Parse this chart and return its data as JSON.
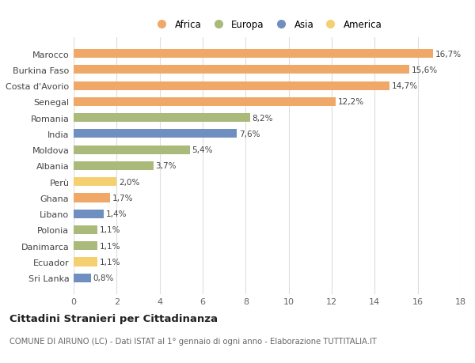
{
  "countries": [
    "Marocco",
    "Burkina Faso",
    "Costa d'Avorio",
    "Senegal",
    "Romania",
    "India",
    "Moldova",
    "Albania",
    "Perù",
    "Ghana",
    "Libano",
    "Polonia",
    "Danimarca",
    "Ecuador",
    "Sri Lanka"
  ],
  "values": [
    16.7,
    15.6,
    14.7,
    12.2,
    8.2,
    7.6,
    5.4,
    3.7,
    2.0,
    1.7,
    1.4,
    1.1,
    1.1,
    1.1,
    0.8
  ],
  "labels": [
    "16,7%",
    "15,6%",
    "14,7%",
    "12,2%",
    "8,2%",
    "7,6%",
    "5,4%",
    "3,7%",
    "2,0%",
    "1,7%",
    "1,4%",
    "1,1%",
    "1,1%",
    "1,1%",
    "0,8%"
  ],
  "continents": [
    "Africa",
    "Africa",
    "Africa",
    "Africa",
    "Europa",
    "Asia",
    "Europa",
    "Europa",
    "America",
    "Africa",
    "Asia",
    "Europa",
    "Europa",
    "America",
    "Asia"
  ],
  "colors": {
    "Africa": "#F0A868",
    "Europa": "#AABA7A",
    "Asia": "#6E8FBF",
    "America": "#F5D070"
  },
  "legend_order": [
    "Africa",
    "Europa",
    "Asia",
    "America"
  ],
  "title": "Cittadini Stranieri per Cittadinanza",
  "subtitle": "COMUNE DI AIRUNO (LC) - Dati ISTAT al 1° gennaio di ogni anno - Elaborazione TUTTITALIA.IT",
  "xlim": [
    0,
    18
  ],
  "xticks": [
    0,
    2,
    4,
    6,
    8,
    10,
    12,
    14,
    16,
    18
  ],
  "background_color": "#ffffff",
  "grid_color": "#dddddd"
}
